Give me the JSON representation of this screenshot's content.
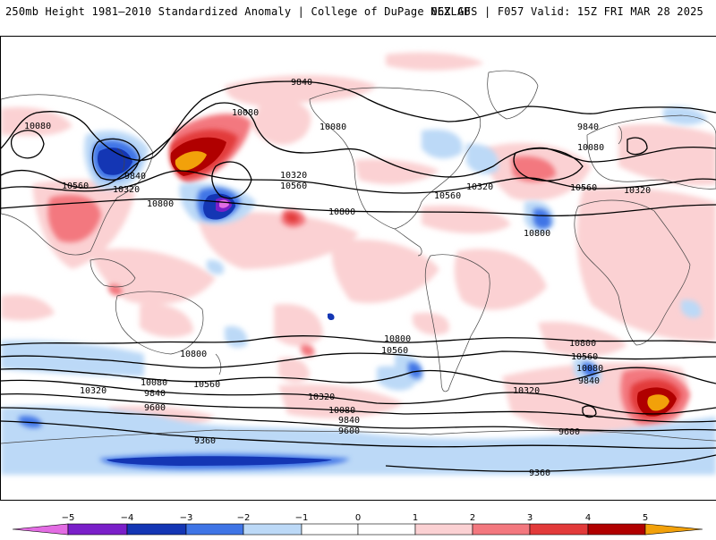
{
  "header": {
    "title": "250mb Height 1981–2010 Standardized Anomaly | College of DuPage NEXLAB",
    "run_info": "06Z GFS | F057 Valid: 15Z FRI MAR 28 2025"
  },
  "colors": {
    "neg5": "#e36ce3",
    "neg4": "#7a1fc9",
    "neg3": "#1436b4",
    "neg2": "#3f75e6",
    "neg1": "#bcd9f7",
    "zero": "#ffffff",
    "pos1": "#fbd1d3",
    "pos2": "#f3787f",
    "pos3": "#e23a3a",
    "pos4": "#b00000",
    "pos5": "#f2a10a",
    "land_outline": "#444444",
    "contour": "#000000"
  },
  "colorbar": {
    "ticks": [
      "−5",
      "−4",
      "−3",
      "−2",
      "−1",
      "0",
      "1",
      "2",
      "3",
      "4",
      "5"
    ]
  },
  "contour_labels": [
    {
      "id": "c1",
      "text": "9840"
    },
    {
      "id": "c2",
      "text": "10080"
    },
    {
      "id": "c3",
      "text": "10080"
    },
    {
      "id": "c4",
      "text": "10080"
    },
    {
      "id": "c5",
      "text": "9840"
    },
    {
      "id": "c6",
      "text": "10080"
    },
    {
      "id": "c7",
      "text": "9840"
    },
    {
      "id": "c8",
      "text": "10320"
    },
    {
      "id": "c9",
      "text": "10320"
    },
    {
      "id": "c10",
      "text": "10560"
    },
    {
      "id": "c11",
      "text": "10560"
    },
    {
      "id": "c12",
      "text": "10320"
    },
    {
      "id": "c13",
      "text": "10560"
    },
    {
      "id": "c14",
      "text": "10560"
    },
    {
      "id": "c15",
      "text": "10320"
    },
    {
      "id": "c16",
      "text": "10800"
    },
    {
      "id": "c17",
      "text": "10800"
    },
    {
      "id": "c18",
      "text": "10800"
    },
    {
      "id": "c19",
      "text": "10800"
    },
    {
      "id": "c20",
      "text": "10800"
    },
    {
      "id": "c21",
      "text": "10800"
    },
    {
      "id": "c22",
      "text": "10560"
    },
    {
      "id": "c23",
      "text": "10560"
    },
    {
      "id": "c24",
      "text": "10560"
    },
    {
      "id": "c25",
      "text": "10320"
    },
    {
      "id": "c26",
      "text": "10080"
    },
    {
      "id": "c27",
      "text": "9840"
    },
    {
      "id": "c28",
      "text": "9600"
    },
    {
      "id": "c29",
      "text": "10320"
    },
    {
      "id": "c30",
      "text": "10080"
    },
    {
      "id": "c31",
      "text": "9840"
    },
    {
      "id": "c32",
      "text": "9600"
    },
    {
      "id": "c33",
      "text": "10320"
    },
    {
      "id": "c34",
      "text": "10080"
    },
    {
      "id": "c35",
      "text": "9840"
    },
    {
      "id": "c36",
      "text": "9600"
    },
    {
      "id": "c37",
      "text": "9360"
    },
    {
      "id": "c38",
      "text": "9360"
    }
  ]
}
